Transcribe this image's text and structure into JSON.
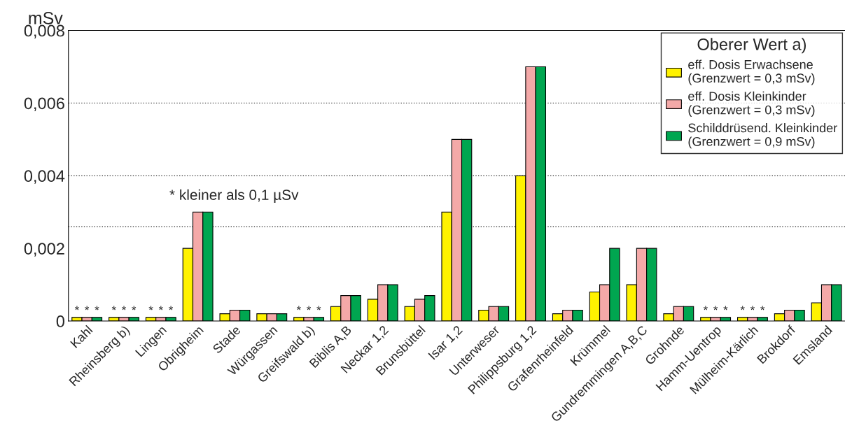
{
  "chart_data": {
    "type": "bar",
    "ylabel": "mSv",
    "legend_title": "Oberer Wert a)",
    "categories": [
      "Kahl",
      "Rheinsberg b)",
      "Lingen",
      "Obrigheim",
      "Stade",
      "Würgassen",
      "Greifswald b)",
      "Biblis A,B",
      "Neckar 1,2",
      "Brunsbüttel",
      "Isar 1,2",
      "Unterweser",
      "Philippsburg 1,2",
      "Grafenrheinfeld",
      "Krümmel",
      "Gundremmingen A,B,C",
      "Grohnde",
      "Hamm-Uentrop",
      "Mülheim-Kärlich",
      "Brokdorf",
      "Emsland"
    ],
    "series": [
      {
        "name": "eff. Dosis Erwachsene\n(Grenzwert = 0,3 mSv)",
        "color": "#fff200",
        "values": [
          0.0001,
          0.0001,
          0.0001,
          0.002,
          0.0002,
          0.0002,
          0.0001,
          0.0004,
          0.0006,
          0.0004,
          0.003,
          0.0003,
          0.004,
          0.0002,
          0.0008,
          0.001,
          0.0002,
          0.0001,
          0.0001,
          0.0002,
          0.0005
        ],
        "value_labels": [
          "*",
          "*",
          "*",
          null,
          null,
          null,
          "*",
          null,
          null,
          null,
          null,
          null,
          null,
          null,
          null,
          null,
          null,
          "*",
          "*",
          null,
          null
        ]
      },
      {
        "name": "eff. Dosis Kleinkinder\n(Grenzwert = 0,3 mSv)",
        "color": "#f4a9a8",
        "values": [
          0.0001,
          0.0001,
          0.0001,
          0.003,
          0.0003,
          0.0002,
          0.0001,
          0.0007,
          0.001,
          0.0006,
          0.005,
          0.0004,
          0.007,
          0.0003,
          0.001,
          0.002,
          0.0004,
          0.0001,
          0.0001,
          0.0003,
          0.001
        ],
        "value_labels": [
          "*",
          "*",
          "*",
          null,
          null,
          null,
          "*",
          null,
          null,
          null,
          null,
          null,
          null,
          null,
          null,
          null,
          null,
          "*",
          "*",
          null,
          null
        ]
      },
      {
        "name": "Schilddrüsend. Kleinkinder\n(Grenzwert = 0,9 mSv)",
        "color": "#00a650",
        "values": [
          0.0001,
          0.0001,
          0.0001,
          0.003,
          0.0003,
          0.0002,
          0.0001,
          0.0007,
          0.001,
          0.0007,
          0.005,
          0.0004,
          0.007,
          0.0003,
          0.002,
          0.002,
          0.0004,
          0.0001,
          0.0001,
          0.0003,
          0.001
        ],
        "value_labels": [
          "*",
          "*",
          "*",
          null,
          null,
          null,
          "*",
          null,
          null,
          null,
          null,
          null,
          null,
          null,
          null,
          null,
          null,
          "*",
          "*",
          null,
          null
        ]
      }
    ],
    "ylim": [
      0,
      0.008
    ],
    "yticks": [
      0,
      {
        "value": 0.002,
        "label": "0,002"
      },
      {
        "value": 0.004,
        "label": "0,004"
      },
      {
        "value": 0.006,
        "label": "0,006"
      },
      {
        "value": 0.008,
        "label": "0,008"
      }
    ],
    "ref_lines": [
      {
        "axis": "y",
        "value": 0.006,
        "line_style": "dotted"
      },
      {
        "axis": "y",
        "value": 0.004,
        "line_style": "dotted"
      },
      {
        "axis": "y",
        "value": 0.0026,
        "line_style": "dotted"
      }
    ],
    "annotations": [
      "* kleiner als 0,1 µSv"
    ],
    "grid": false,
    "legend": "top right"
  }
}
